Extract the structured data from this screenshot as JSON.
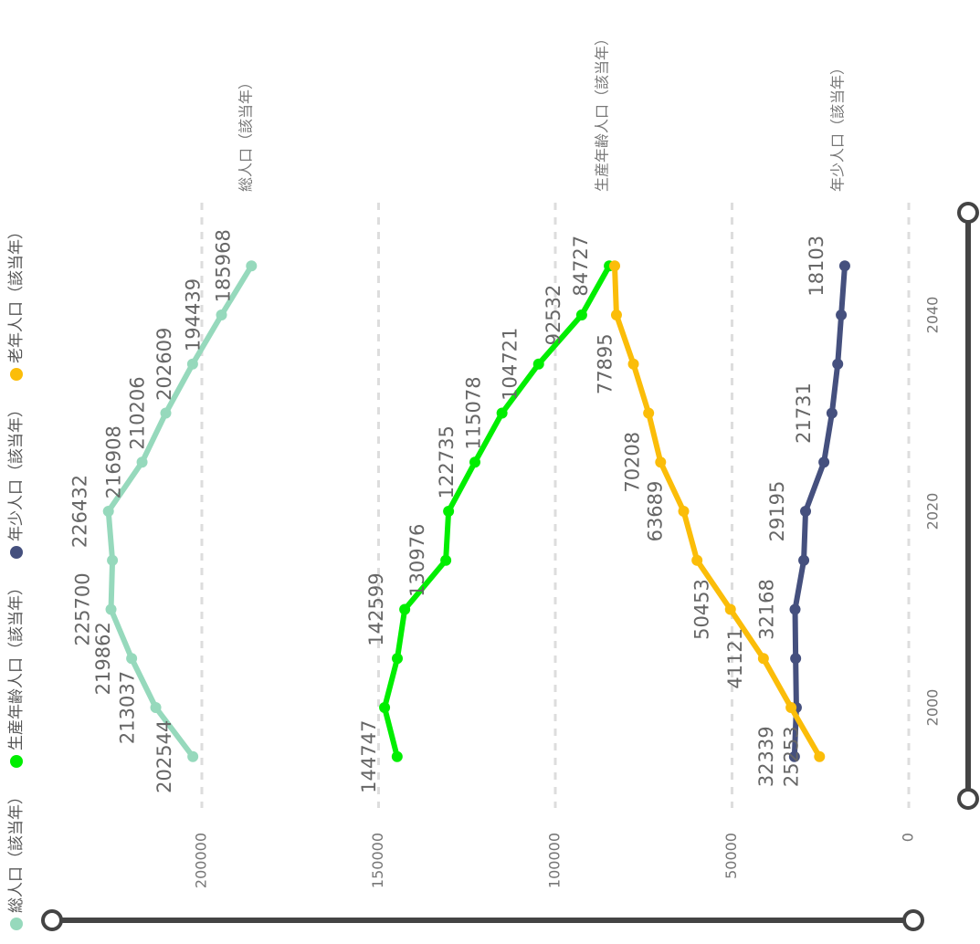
{
  "chart_data": {
    "type": "line",
    "x": [
      1995,
      2000,
      2005,
      2010,
      2015,
      2020,
      2025,
      2030,
      2035,
      2040,
      2045
    ],
    "xlim": [
      1990,
      2050
    ],
    "xticks": [
      2000,
      2020,
      2040
    ],
    "ylim": [
      0,
      250000
    ],
    "yticks": [
      0,
      50000,
      100000,
      150000,
      200000
    ],
    "grid": true,
    "legend": "left",
    "series": [
      {
        "name": "総人口（該当年）",
        "color": "#96d9bc",
        "values": [
          202544,
          213037,
          219862,
          225700,
          225300,
          226432,
          216908,
          210206,
          202609,
          194439,
          185968
        ],
        "value_labels": [
          "202544",
          "213037",
          "219862",
          "225700",
          null,
          "226432",
          "216908",
          "210206",
          "202609",
          "194439",
          "185968"
        ]
      },
      {
        "name": "生産年齢人口（該当年）",
        "color": "#00ee00",
        "values": [
          144747,
          148300,
          144700,
          142599,
          130976,
          130200,
          122735,
          115078,
          104721,
          92532,
          84727
        ],
        "value_labels": [
          "144747",
          null,
          null,
          "142599",
          "130976",
          null,
          "122735",
          "115078",
          "104721",
          "92532",
          "84727"
        ]
      },
      {
        "name": "年少人口（該当年）",
        "color": "#45507e",
        "values": [
          32339,
          31800,
          32000,
          32168,
          29700,
          29195,
          24000,
          21731,
          20100,
          19100,
          18103
        ],
        "value_labels": [
          "32339",
          null,
          null,
          "32168",
          null,
          "29195",
          null,
          "21731",
          null,
          null,
          "18103"
        ]
      },
      {
        "name": "老年人口（該当年）",
        "color": "#fbbd09",
        "values": [
          25253,
          33300,
          41121,
          50453,
          59900,
          63689,
          70208,
          73600,
          77895,
          82700,
          83200
        ],
        "value_labels": [
          "25253",
          null,
          "41121",
          "50453",
          null,
          "63689",
          "70208",
          null,
          "77895",
          null,
          null
        ]
      }
    ]
  }
}
